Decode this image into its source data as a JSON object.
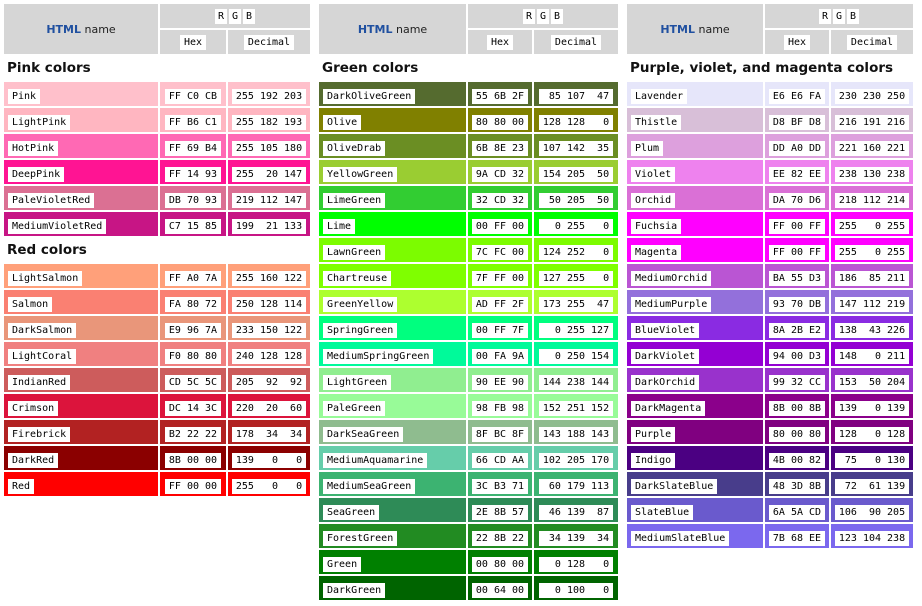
{
  "header": {
    "html_brand": "HTML",
    "name_label": "name",
    "r": "R",
    "g": "G",
    "b": "B",
    "hex": "Hex",
    "decimal": "Decimal"
  },
  "columns": [
    {
      "groups": [
        {
          "title": "Pink colors",
          "colors": [
            {
              "name": "Pink",
              "hex": "FF C0 CB",
              "dec": "255 192 203",
              "bg": "#FFC0CB"
            },
            {
              "name": "LightPink",
              "hex": "FF B6 C1",
              "dec": "255 182 193",
              "bg": "#FFB6C1"
            },
            {
              "name": "HotPink",
              "hex": "FF 69 B4",
              "dec": "255 105 180",
              "bg": "#FF69B4"
            },
            {
              "name": "DeepPink",
              "hex": "FF 14 93",
              "dec": "255  20 147",
              "bg": "#FF1493"
            },
            {
              "name": "PaleVioletRed",
              "hex": "DB 70 93",
              "dec": "219 112 147",
              "bg": "#DB7093"
            },
            {
              "name": "MediumVioletRed",
              "hex": "C7 15 85",
              "dec": "199  21 133",
              "bg": "#C71585"
            }
          ]
        },
        {
          "title": "Red colors",
          "colors": [
            {
              "name": "LightSalmon",
              "hex": "FF A0 7A",
              "dec": "255 160 122",
              "bg": "#FFA07A"
            },
            {
              "name": "Salmon",
              "hex": "FA 80 72",
              "dec": "250 128 114",
              "bg": "#FA8072"
            },
            {
              "name": "DarkSalmon",
              "hex": "E9 96 7A",
              "dec": "233 150 122",
              "bg": "#E9967A"
            },
            {
              "name": "LightCoral",
              "hex": "F0 80 80",
              "dec": "240 128 128",
              "bg": "#F08080"
            },
            {
              "name": "IndianRed",
              "hex": "CD 5C 5C",
              "dec": "205  92  92",
              "bg": "#CD5C5C"
            },
            {
              "name": "Crimson",
              "hex": "DC 14 3C",
              "dec": "220  20  60",
              "bg": "#DC143C"
            },
            {
              "name": "Firebrick",
              "hex": "B2 22 22",
              "dec": "178  34  34",
              "bg": "#B22222"
            },
            {
              "name": "DarkRed",
              "hex": "8B 00 00",
              "dec": "139   0   0",
              "bg": "#8B0000"
            },
            {
              "name": "Red",
              "hex": "FF 00 00",
              "dec": "255   0   0",
              "bg": "#FF0000"
            }
          ]
        }
      ]
    },
    {
      "groups": [
        {
          "title": "Green colors",
          "colors": [
            {
              "name": "DarkOliveGreen",
              "hex": "55 6B 2F",
              "dec": " 85 107  47",
              "bg": "#556B2F"
            },
            {
              "name": "Olive",
              "hex": "80 80 00",
              "dec": "128 128   0",
              "bg": "#808000"
            },
            {
              "name": "OliveDrab",
              "hex": "6B 8E 23",
              "dec": "107 142  35",
              "bg": "#6B8E23"
            },
            {
              "name": "YellowGreen",
              "hex": "9A CD 32",
              "dec": "154 205  50",
              "bg": "#9ACD32"
            },
            {
              "name": "LimeGreen",
              "hex": "32 CD 32",
              "dec": " 50 205  50",
              "bg": "#32CD32"
            },
            {
              "name": "Lime",
              "hex": "00 FF 00",
              "dec": "  0 255   0",
              "bg": "#00FF00"
            },
            {
              "name": "LawnGreen",
              "hex": "7C FC 00",
              "dec": "124 252   0",
              "bg": "#7CFC00"
            },
            {
              "name": "Chartreuse",
              "hex": "7F FF 00",
              "dec": "127 255   0",
              "bg": "#7FFF00"
            },
            {
              "name": "GreenYellow",
              "hex": "AD FF 2F",
              "dec": "173 255  47",
              "bg": "#ADFF2F"
            },
            {
              "name": "SpringGreen",
              "hex": "00 FF 7F",
              "dec": "  0 255 127",
              "bg": "#00FF7F"
            },
            {
              "name": "MediumSpringGreen",
              "hex": "00 FA 9A",
              "dec": "  0 250 154",
              "bg": "#00FA9A"
            },
            {
              "name": "LightGreen",
              "hex": "90 EE 90",
              "dec": "144 238 144",
              "bg": "#90EE90"
            },
            {
              "name": "PaleGreen",
              "hex": "98 FB 98",
              "dec": "152 251 152",
              "bg": "#98FB98"
            },
            {
              "name": "DarkSeaGreen",
              "hex": "8F BC 8F",
              "dec": "143 188 143",
              "bg": "#8FBC8F"
            },
            {
              "name": "MediumAquamarine",
              "hex": "66 CD AA",
              "dec": "102 205 170",
              "bg": "#66CDAA"
            },
            {
              "name": "MediumSeaGreen",
              "hex": "3C B3 71",
              "dec": " 60 179 113",
              "bg": "#3CB371"
            },
            {
              "name": "SeaGreen",
              "hex": "2E 8B 57",
              "dec": " 46 139  87",
              "bg": "#2E8B57"
            },
            {
              "name": "ForestGreen",
              "hex": "22 8B 22",
              "dec": " 34 139  34",
              "bg": "#228B22"
            },
            {
              "name": "Green",
              "hex": "00 80 00",
              "dec": "  0 128   0",
              "bg": "#008000"
            },
            {
              "name": "DarkGreen",
              "hex": "00 64 00",
              "dec": "  0 100   0",
              "bg": "#006400"
            }
          ]
        }
      ]
    },
    {
      "groups": [
        {
          "title": "Purple, violet, and magenta colors",
          "colors": [
            {
              "name": "Lavender",
              "hex": "E6 E6 FA",
              "dec": "230 230 250",
              "bg": "#E6E6FA"
            },
            {
              "name": "Thistle",
              "hex": "D8 BF D8",
              "dec": "216 191 216",
              "bg": "#D8BFD8"
            },
            {
              "name": "Plum",
              "hex": "DD A0 DD",
              "dec": "221 160 221",
              "bg": "#DDA0DD"
            },
            {
              "name": "Violet",
              "hex": "EE 82 EE",
              "dec": "238 130 238",
              "bg": "#EE82EE"
            },
            {
              "name": "Orchid",
              "hex": "DA 70 D6",
              "dec": "218 112 214",
              "bg": "#DA70D6"
            },
            {
              "name": "Fuchsia",
              "hex": "FF 00 FF",
              "dec": "255   0 255",
              "bg": "#FF00FF"
            },
            {
              "name": "Magenta",
              "hex": "FF 00 FF",
              "dec": "255   0 255",
              "bg": "#FF00FF"
            },
            {
              "name": "MediumOrchid",
              "hex": "BA 55 D3",
              "dec": "186  85 211",
              "bg": "#BA55D3"
            },
            {
              "name": "MediumPurple",
              "hex": "93 70 DB",
              "dec": "147 112 219",
              "bg": "#9370DB"
            },
            {
              "name": "BlueViolet",
              "hex": "8A 2B E2",
              "dec": "138  43 226",
              "bg": "#8A2BE2"
            },
            {
              "name": "DarkViolet",
              "hex": "94 00 D3",
              "dec": "148   0 211",
              "bg": "#9400D3"
            },
            {
              "name": "DarkOrchid",
              "hex": "99 32 CC",
              "dec": "153  50 204",
              "bg": "#9932CC"
            },
            {
              "name": "DarkMagenta",
              "hex": "8B 00 8B",
              "dec": "139   0 139",
              "bg": "#8B008B"
            },
            {
              "name": "Purple",
              "hex": "80 00 80",
              "dec": "128   0 128",
              "bg": "#800080"
            },
            {
              "name": "Indigo",
              "hex": "4B 00 82",
              "dec": " 75   0 130",
              "bg": "#4B0082"
            },
            {
              "name": "DarkSlateBlue",
              "hex": "48 3D 8B",
              "dec": " 72  61 139",
              "bg": "#483D8B"
            },
            {
              "name": "SlateBlue",
              "hex": "6A 5A CD",
              "dec": "106  90 205",
              "bg": "#6A5ACD"
            },
            {
              "name": "MediumSlateBlue",
              "hex": "7B 68 EE",
              "dec": "123 104 238",
              "bg": "#7B68EE"
            }
          ]
        }
      ]
    }
  ]
}
